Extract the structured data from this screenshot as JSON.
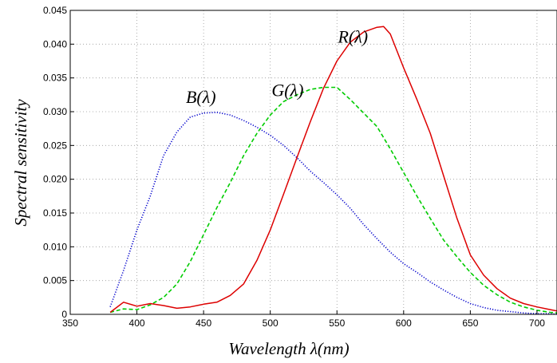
{
  "chart_data": {
    "type": "line",
    "title": "",
    "xlabel": "Wavelength λ(nm)",
    "ylabel": "Spectral sensitivity",
    "xlim": [
      350,
      715
    ],
    "ylim": [
      0,
      0.045
    ],
    "grid": true,
    "xticks": [
      "350",
      "400",
      "450",
      "500",
      "550",
      "600",
      "650",
      "700"
    ],
    "yticks": [
      "0",
      "0.005",
      "0.010",
      "0.015",
      "0.020",
      "0.025",
      "0.030",
      "0.035",
      "0.040",
      "0.045"
    ],
    "series": [
      {
        "name": "B(λ)",
        "color": "#0000cc",
        "style": "dotted",
        "x": [
          380,
          390,
          400,
          410,
          420,
          430,
          440,
          450,
          460,
          470,
          480,
          490,
          500,
          510,
          520,
          530,
          540,
          550,
          560,
          570,
          580,
          590,
          600,
          610,
          620,
          630,
          640,
          650,
          660,
          670,
          680,
          690,
          700,
          710,
          715
        ],
        "y": [
          0.0011,
          0.0065,
          0.0125,
          0.0175,
          0.0235,
          0.027,
          0.0292,
          0.0298,
          0.0299,
          0.0295,
          0.0287,
          0.0277,
          0.0265,
          0.025,
          0.0232,
          0.0212,
          0.0195,
          0.0177,
          0.0157,
          0.0133,
          0.0112,
          0.0092,
          0.0075,
          0.0062,
          0.0048,
          0.0036,
          0.0025,
          0.0016,
          0.001,
          0.0006,
          0.0004,
          0.0002,
          0.0001,
          0.0001,
          0.0
        ]
      },
      {
        "name": "G(λ)",
        "color": "#00cc00",
        "style": "dashed",
        "x": [
          380,
          390,
          400,
          410,
          420,
          430,
          440,
          450,
          460,
          470,
          480,
          490,
          500,
          510,
          520,
          530,
          540,
          550,
          560,
          570,
          580,
          590,
          600,
          610,
          620,
          630,
          640,
          650,
          660,
          670,
          680,
          690,
          700,
          710,
          715
        ],
        "y": [
          0.0003,
          0.0008,
          0.0007,
          0.0014,
          0.0025,
          0.0045,
          0.0078,
          0.0118,
          0.0158,
          0.0195,
          0.0235,
          0.0268,
          0.0295,
          0.0315,
          0.0325,
          0.0333,
          0.0336,
          0.0336,
          0.0318,
          0.0298,
          0.0278,
          0.0245,
          0.021,
          0.0175,
          0.0142,
          0.011,
          0.0085,
          0.0062,
          0.0043,
          0.0029,
          0.0018,
          0.0011,
          0.0006,
          0.0003,
          0.0002
        ]
      },
      {
        "name": "R(λ)",
        "color": "#dd0000",
        "style": "solid",
        "x": [
          380,
          390,
          400,
          410,
          420,
          430,
          440,
          450,
          460,
          470,
          480,
          490,
          500,
          510,
          520,
          530,
          540,
          550,
          560,
          570,
          580,
          585,
          590,
          600,
          610,
          620,
          630,
          640,
          650,
          660,
          670,
          680,
          690,
          700,
          710,
          715
        ],
        "y": [
          0.0003,
          0.0018,
          0.0012,
          0.0016,
          0.0013,
          0.0009,
          0.0011,
          0.0015,
          0.0018,
          0.0028,
          0.0045,
          0.008,
          0.0125,
          0.0178,
          0.0232,
          0.0285,
          0.0335,
          0.0375,
          0.0403,
          0.0418,
          0.0425,
          0.0426,
          0.0415,
          0.0365,
          0.0318,
          0.0268,
          0.0205,
          0.0142,
          0.0088,
          0.0058,
          0.0038,
          0.0024,
          0.0016,
          0.0011,
          0.0007,
          0.0005
        ]
      }
    ],
    "annotations": [
      {
        "text": "B(λ)",
        "x": 448,
        "y": 0.0313
      },
      {
        "text": "G(λ)",
        "x": 513,
        "y": 0.0323
      },
      {
        "text": "R(λ)",
        "x": 562,
        "y": 0.0402
      }
    ]
  }
}
